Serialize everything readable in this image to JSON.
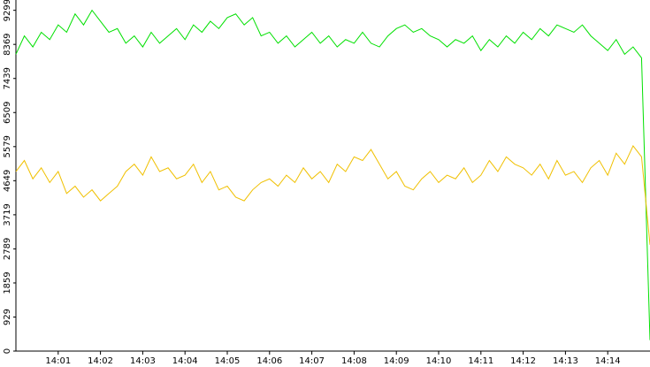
{
  "chart_data": {
    "type": "line",
    "x": [
      0,
      0.2,
      0.4,
      0.6,
      0.8,
      1,
      1.2,
      1.4,
      1.6,
      1.8,
      2,
      2.2,
      2.4,
      2.6,
      2.8,
      3,
      3.2,
      3.4,
      3.6,
      3.8,
      4,
      4.2,
      4.4,
      4.6,
      4.8,
      5,
      5.2,
      5.4,
      5.6,
      5.8,
      6,
      6.2,
      6.4,
      6.6,
      6.8,
      7,
      7.2,
      7.4,
      7.6,
      7.8,
      8,
      8.2,
      8.4,
      8.6,
      8.8,
      9,
      9.2,
      9.4,
      9.6,
      9.8,
      10,
      10.2,
      10.4,
      10.6,
      10.8,
      11,
      11.2,
      11.4,
      11.6,
      11.8,
      12,
      12.2,
      12.4,
      12.6,
      12.8,
      13,
      13.2,
      13.4,
      13.6,
      13.8,
      14,
      14.2,
      14.4,
      14.6,
      14.8,
      15
    ],
    "series": [
      {
        "color": "#00e000",
        "values": [
          8100,
          8600,
          8300,
          8700,
          8500,
          8900,
          8700,
          9200,
          8900,
          9300,
          9000,
          8700,
          8800,
          8400,
          8600,
          8300,
          8700,
          8400,
          8600,
          8800,
          8500,
          8900,
          8700,
          9000,
          8800,
          9100,
          9200,
          8900,
          9100,
          8600,
          8700,
          8400,
          8600,
          8300,
          8500,
          8700,
          8400,
          8600,
          8300,
          8500,
          8400,
          8700,
          8400,
          8300,
          8600,
          8800,
          8900,
          8700,
          8800,
          8600,
          8500,
          8300,
          8500,
          8400,
          8600,
          8200,
          8500,
          8300,
          8600,
          8400,
          8700,
          8500,
          8800,
          8600,
          8900,
          8800,
          8700,
          8900,
          8600,
          8400,
          8200,
          8500,
          8100,
          8300,
          8000,
          300
        ]
      },
      {
        "color": "#f0c000",
        "values": [
          4900,
          5200,
          4700,
          5000,
          4600,
          4900,
          4300,
          4500,
          4200,
          4400,
          4100,
          4300,
          4500,
          4900,
          5100,
          4800,
          5300,
          4900,
          5000,
          4700,
          4800,
          5100,
          4600,
          4900,
          4400,
          4500,
          4200,
          4100,
          4400,
          4600,
          4700,
          4500,
          4800,
          4600,
          5000,
          4700,
          4900,
          4600,
          5100,
          4900,
          5300,
          5200,
          5500,
          5100,
          4700,
          4900,
          4500,
          4400,
          4700,
          4900,
          4600,
          4800,
          4700,
          5000,
          4600,
          4800,
          5200,
          4900,
          5300,
          5100,
          5000,
          4800,
          5100,
          4700,
          5200,
          4800,
          4900,
          4600,
          5000,
          5200,
          4800,
          5400,
          5100,
          5600,
          5300,
          2900
        ]
      }
    ],
    "xlim": [
      0,
      15
    ],
    "xticks": [
      {
        "value": 1,
        "label": "14:01"
      },
      {
        "value": 2,
        "label": "14:02"
      },
      {
        "value": 3,
        "label": "14:03"
      },
      {
        "value": 4,
        "label": "14:04"
      },
      {
        "value": 5,
        "label": "14:05"
      },
      {
        "value": 6,
        "label": "14:06"
      },
      {
        "value": 7,
        "label": "14:07"
      },
      {
        "value": 8,
        "label": "14:08"
      },
      {
        "value": 9,
        "label": "14:09"
      },
      {
        "value": 10,
        "label": "14:10"
      },
      {
        "value": 11,
        "label": "14:11"
      },
      {
        "value": 12,
        "label": "14:12"
      },
      {
        "value": 13,
        "label": "14:13"
      },
      {
        "value": 14,
        "label": "14:14"
      }
    ],
    "ylim": [
      0,
      9580
    ],
    "yticks": [
      0,
      929,
      1859,
      2789,
      3719,
      4649,
      5579,
      6509,
      7439,
      8369,
      9299
    ]
  }
}
